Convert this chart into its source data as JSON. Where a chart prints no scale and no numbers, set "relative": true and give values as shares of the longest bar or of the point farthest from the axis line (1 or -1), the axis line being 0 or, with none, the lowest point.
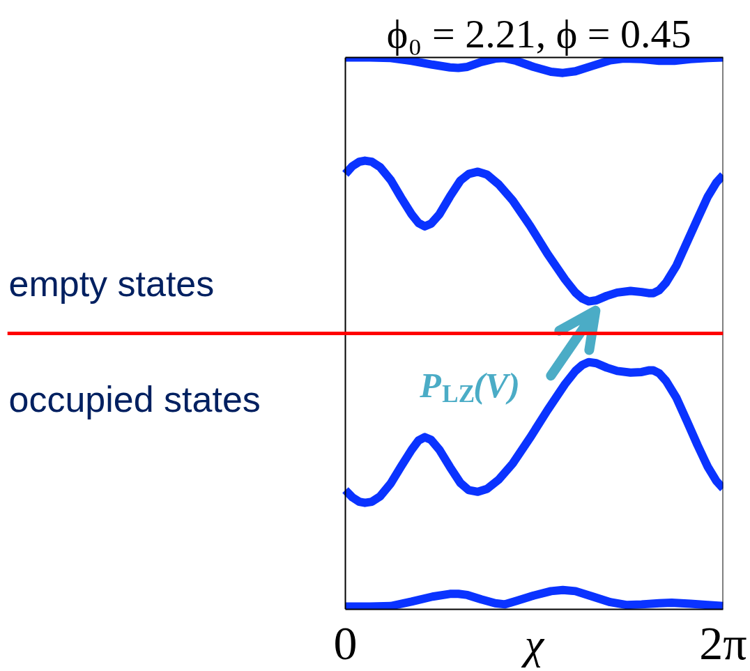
{
  "chart_data": {
    "type": "line",
    "title": "ϕ₀ = 2.21, ϕ = 0.45",
    "xlabel": "χ",
    "relative": true,
    "xlim": [
      0,
      6.283
    ],
    "xticks": [
      0,
      {
        "value": 6.283,
        "label": "2π"
      }
    ],
    "ref_lines": [
      {
        "axis": "y",
        "value": 0.5,
        "color": "#ff0000"
      }
    ],
    "annotations": [
      "empty states",
      "occupied states",
      {
        "text": "P$_{LZ}$(V)",
        "x": 4.16,
        "y": 0.56
      }
    ],
    "series": [
      {
        "color": "#0a33ff",
        "x": [
          0,
          0.406,
          0.754,
          1.101,
          1.449,
          1.739,
          1.878,
          2.029,
          2.261,
          2.492,
          2.643,
          2.84,
          3.13,
          3.42,
          3.617,
          3.826,
          4.115,
          4.405,
          4.626,
          4.927,
          5.217,
          5.472,
          5.739,
          6.028,
          6.283
        ],
        "values": [
          1.0,
          1.0,
          0.999,
          0.994,
          0.987,
          0.982,
          0.981,
          0.983,
          0.992,
          0.998,
          0.999,
          0.994,
          0.983,
          0.974,
          0.972,
          0.975,
          0.985,
          0.995,
          0.998,
          0.997,
          0.994,
          0.994,
          0.997,
          0.999,
          1.0
        ]
      },
      {
        "color": "#0a33ff",
        "x": [
          0,
          0.116,
          0.232,
          0.325,
          0.441,
          0.58,
          0.754,
          0.927,
          1.101,
          1.217,
          1.322,
          1.426,
          1.565,
          1.739,
          1.913,
          2.052,
          2.203,
          2.353,
          2.55,
          2.782,
          3.072,
          3.362,
          3.652,
          3.826,
          3.942,
          4.046,
          4.173,
          4.347,
          4.521,
          4.742,
          4.927,
          5.043,
          5.124,
          5.217,
          5.333,
          5.507,
          5.681,
          5.855,
          6.028,
          6.167,
          6.283
        ],
        "values": [
          0.789,
          0.803,
          0.811,
          0.813,
          0.811,
          0.801,
          0.778,
          0.746,
          0.716,
          0.7,
          0.694,
          0.699,
          0.716,
          0.748,
          0.777,
          0.789,
          0.793,
          0.788,
          0.77,
          0.741,
          0.695,
          0.644,
          0.598,
          0.574,
          0.563,
          0.558,
          0.56,
          0.568,
          0.574,
          0.577,
          0.575,
          0.573,
          0.573,
          0.578,
          0.592,
          0.623,
          0.665,
          0.707,
          0.748,
          0.773,
          0.787
        ]
      },
      {
        "color": "#0a33ff",
        "x": [
          0,
          0.116,
          0.232,
          0.325,
          0.441,
          0.58,
          0.754,
          0.927,
          1.101,
          1.217,
          1.322,
          1.426,
          1.565,
          1.739,
          1.913,
          2.052,
          2.203,
          2.353,
          2.55,
          2.782,
          3.072,
          3.362,
          3.652,
          3.826,
          3.942,
          4.046,
          4.173,
          4.347,
          4.521,
          4.742,
          4.927,
          5.043,
          5.124,
          5.217,
          5.333,
          5.507,
          5.681,
          5.855,
          6.028,
          6.167,
          6.283
        ],
        "values": [
          0.216,
          0.203,
          0.195,
          0.193,
          0.195,
          0.205,
          0.228,
          0.259,
          0.289,
          0.306,
          0.312,
          0.307,
          0.289,
          0.258,
          0.229,
          0.216,
          0.213,
          0.218,
          0.235,
          0.264,
          0.311,
          0.361,
          0.408,
          0.432,
          0.443,
          0.448,
          0.446,
          0.438,
          0.432,
          0.429,
          0.43,
          0.433,
          0.433,
          0.428,
          0.414,
          0.383,
          0.341,
          0.298,
          0.258,
          0.233,
          0.219
        ]
      },
      {
        "color": "#0a33ff",
        "x": [
          0,
          0.406,
          0.754,
          1.101,
          1.449,
          1.739,
          1.878,
          2.029,
          2.261,
          2.492,
          2.655,
          2.84,
          3.13,
          3.42,
          3.617,
          3.826,
          4.115,
          4.405,
          4.672,
          4.927,
          5.217,
          5.426,
          5.739,
          6.028,
          6.283
        ],
        "values": [
          0.005,
          0.005,
          0.006,
          0.014,
          0.023,
          0.028,
          0.028,
          0.026,
          0.018,
          0.011,
          0.009,
          0.015,
          0.025,
          0.033,
          0.035,
          0.033,
          0.023,
          0.013,
          0.008,
          0.009,
          0.011,
          0.012,
          0.01,
          0.008,
          0.006
        ]
      }
    ]
  }
}
